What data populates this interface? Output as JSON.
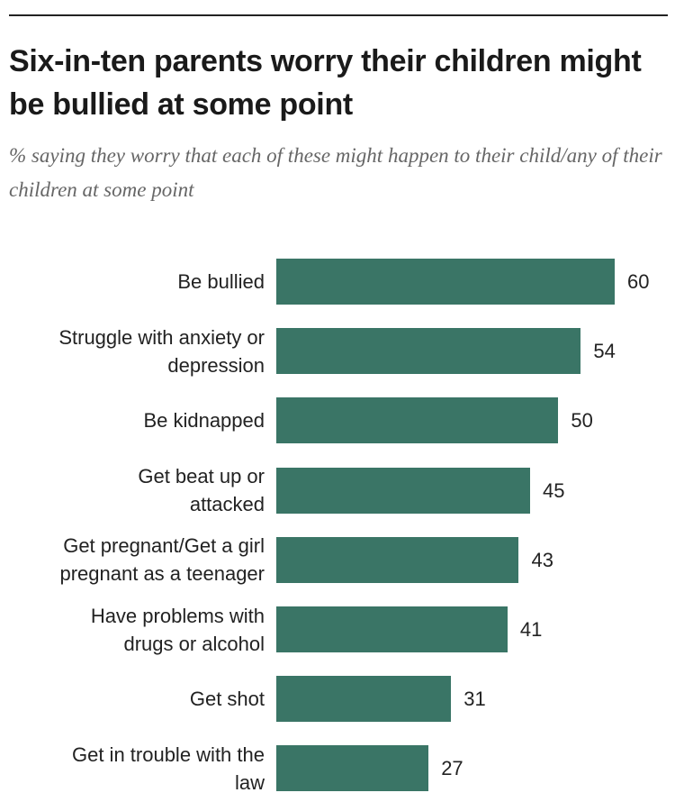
{
  "chart_data": {
    "type": "bar",
    "orientation": "horizontal",
    "title": "Six-in-ten parents worry their children might be bullied at some point",
    "subtitle": "% saying they worry that each of these might happen to their child/any of their children at some point",
    "categories": [
      "Be bullied",
      "Struggle with anxiety or\ndepression",
      "Be kidnapped",
      "Get beat up or\nattacked",
      "Get pregnant/Get a girl\npregnant as a teenager",
      "Have problems with\ndrugs or alcohol",
      "Get shot",
      "Get in trouble with the\nlaw"
    ],
    "values": [
      60,
      54,
      50,
      45,
      43,
      41,
      31,
      27
    ],
    "color": "#3a7566"
  }
}
